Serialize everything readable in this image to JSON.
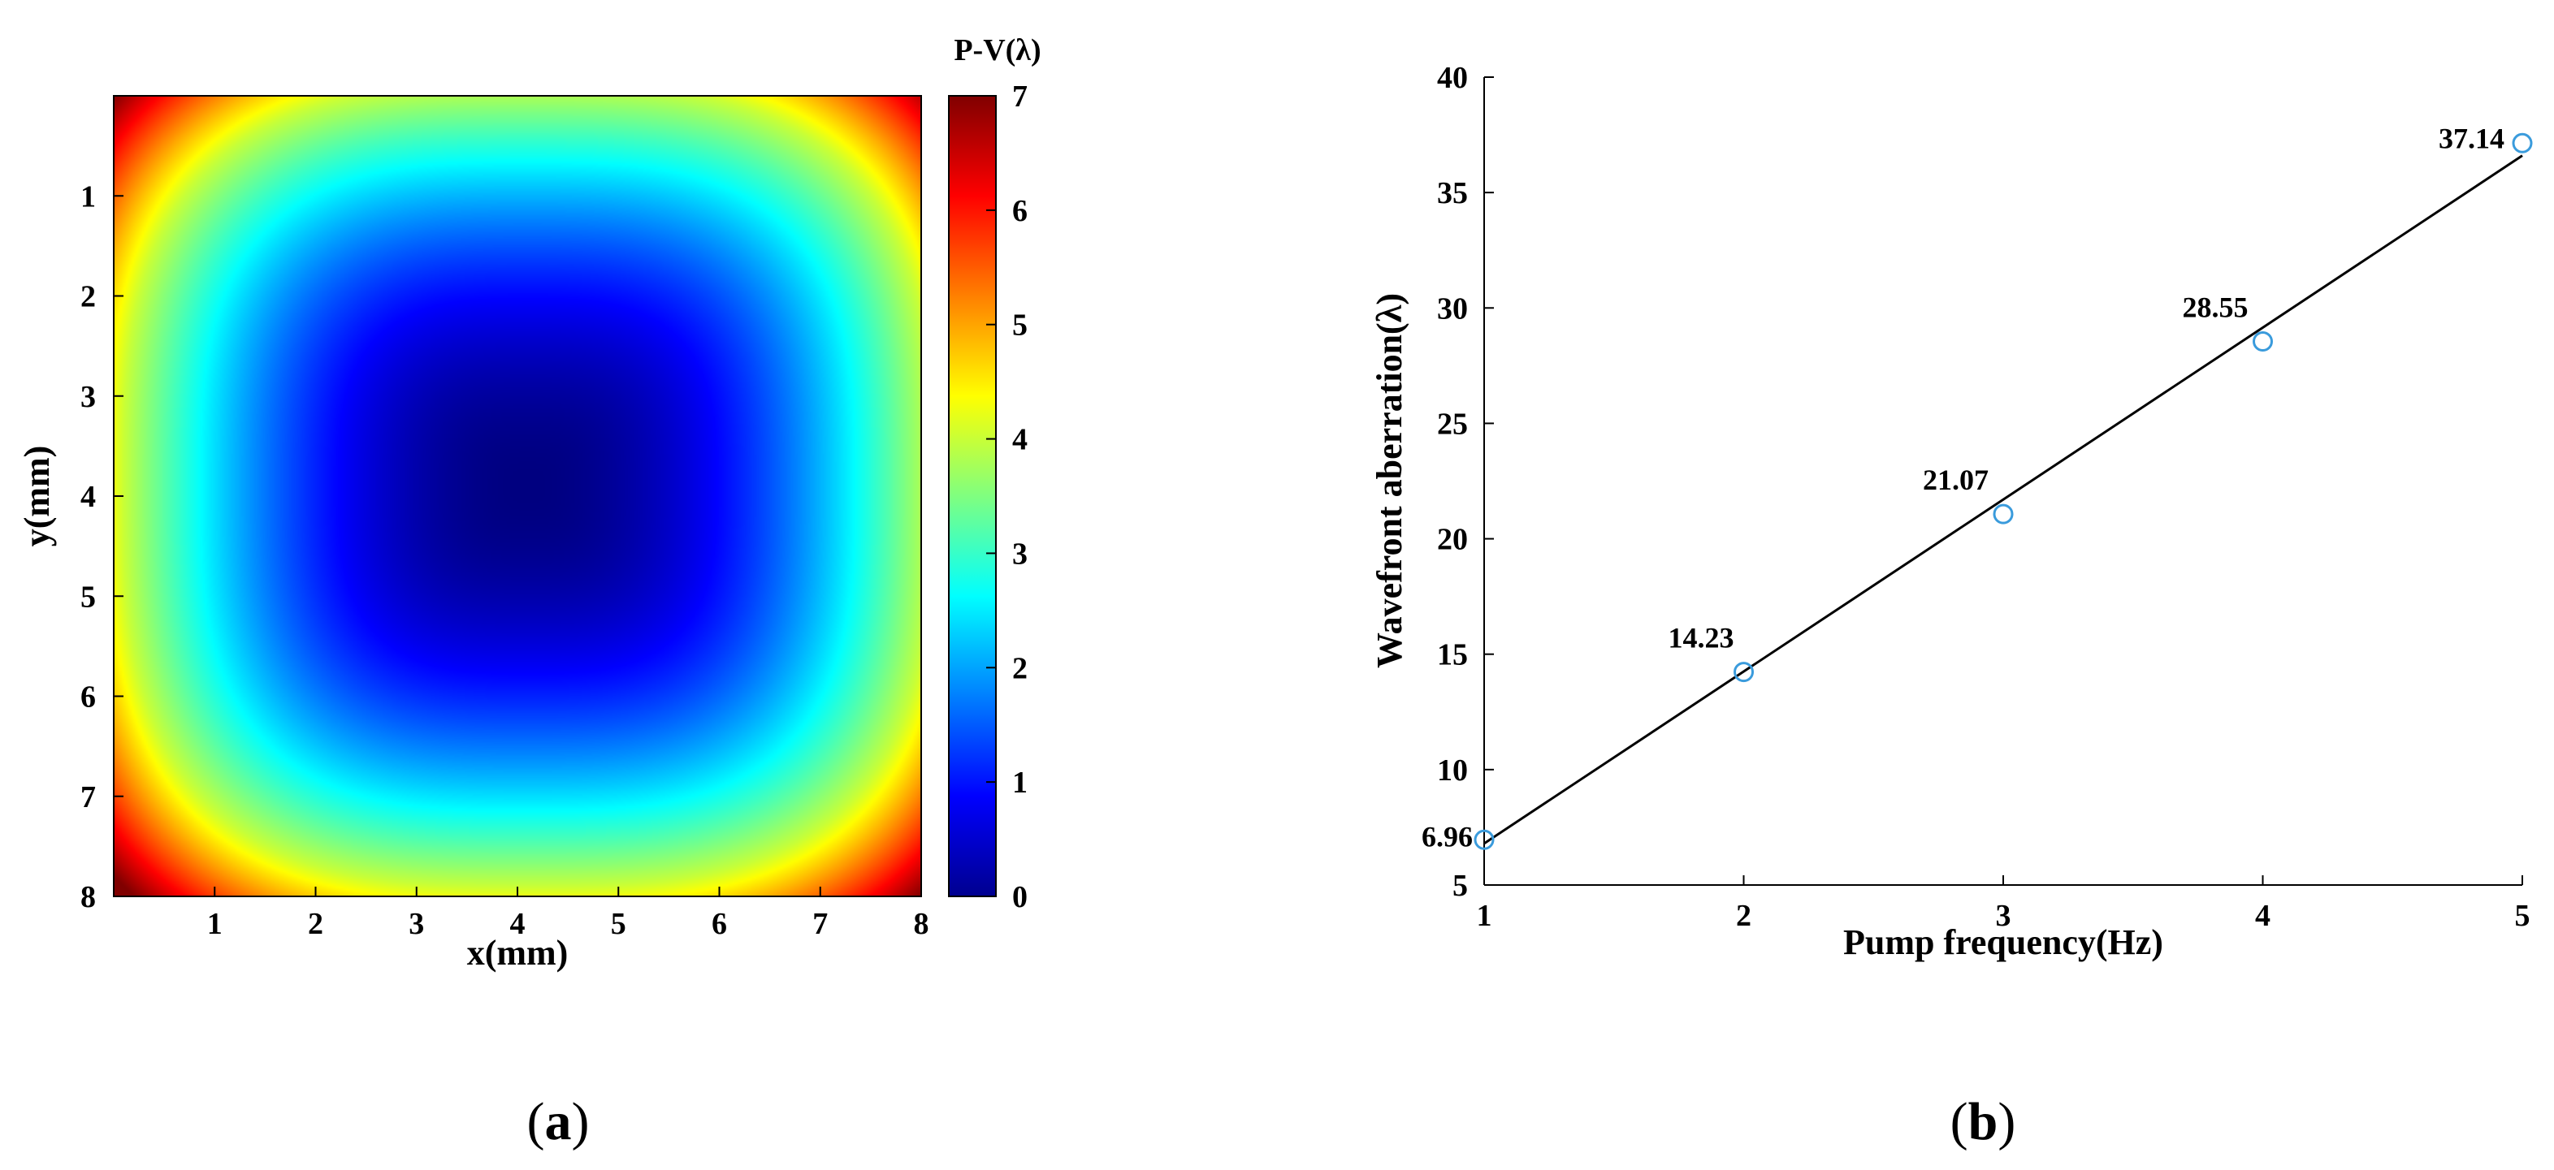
{
  "panel_labels": [
    {
      "open": "(",
      "letter": "a",
      "close": ")"
    },
    {
      "open": "(",
      "letter": "b",
      "close": ")"
    }
  ],
  "chart_data": [
    {
      "type": "heatmap",
      "title": "",
      "xlabel": "x(mm)",
      "ylabel": "y(mm)",
      "xlim": [
        0,
        8
      ],
      "ylim": [
        0,
        8
      ],
      "y_reversed": true,
      "xticks": [
        "1",
        "2",
        "3",
        "4",
        "5",
        "6",
        "7",
        "8"
      ],
      "yticks": [
        "1",
        "2",
        "3",
        "4",
        "5",
        "6",
        "7",
        "8"
      ],
      "colormap": "jet",
      "colorbar": {
        "title": "P-V(λ)",
        "range": [
          0,
          7
        ],
        "ticks": [
          "0",
          "1",
          "2",
          "3",
          "4",
          "5",
          "6",
          "7"
        ]
      },
      "field": {
        "description_units": "P-V in λ",
        "center": [
          4.1,
          3.9
        ],
        "center_value": 0,
        "corner_value": 7,
        "edge_mid_value": 4
      },
      "grid": false
    },
    {
      "type": "scatter",
      "title": "",
      "xlabel": "Pump frequency(Hz)",
      "ylabel": "Wavefront aberration(λ)",
      "xlim": [
        1,
        5
      ],
      "ylim": [
        5,
        40
      ],
      "xticks": [
        "1",
        "2",
        "3",
        "4",
        "5"
      ],
      "yticks": [
        "5",
        "10",
        "15",
        "20",
        "25",
        "30",
        "35",
        "40"
      ],
      "series": [
        {
          "x": [
            1,
            2,
            3,
            4,
            5
          ],
          "y": [
            6.96,
            14.23,
            21.07,
            28.55,
            37.14
          ],
          "labels": [
            "6.96",
            "14.23",
            "21.07",
            "28.55",
            "37.14"
          ],
          "marker": "open-circle",
          "color": "#3a9bdc"
        }
      ],
      "fit_line": {
        "x": [
          1,
          5
        ],
        "y": [
          6.8,
          36.6
        ],
        "color": "#000000"
      },
      "grid": false
    }
  ],
  "colors": {
    "marker": "#3a9bdc",
    "fit_line": "#000000",
    "axis": "#000000"
  }
}
